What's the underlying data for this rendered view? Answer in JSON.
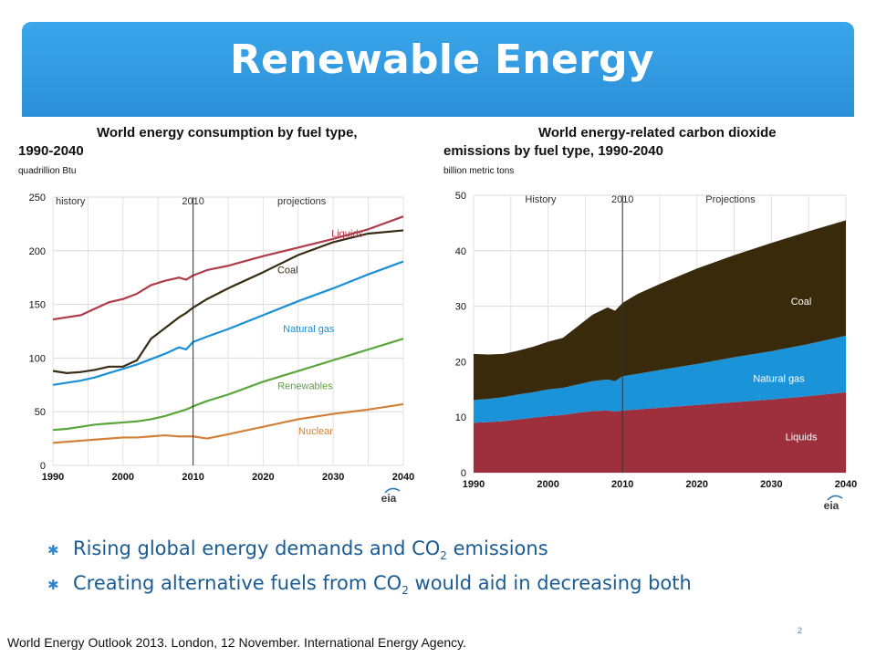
{
  "slide": {
    "title": "Renewable Energy",
    "bullets": [
      {
        "before": "Rising global energy demands and CO",
        "sub": "2",
        "after": " emissions"
      },
      {
        "before": "Creating alternative fuels from CO",
        "sub": "2",
        "after": " would aid in decreasing both"
      }
    ],
    "bullet_icon": "asterisk-bullet-icon",
    "footer": "World Energy Outlook 2013. London, 12 November. International Energy Agency.",
    "page_number": "2",
    "colors": {
      "banner": "#2f9ae3",
      "bullet_text": "#1a5b94"
    }
  },
  "chart_data": [
    {
      "type": "line",
      "title": "World energy consumption by fuel type,",
      "subtitle": "1990-2040",
      "ylabel": "quadrillion Btu",
      "xlabel": "",
      "xlim": [
        1990,
        2040
      ],
      "ylim": [
        0,
        250
      ],
      "xticks": [
        1990,
        2000,
        2010,
        2020,
        2030,
        2040
      ],
      "yticks": [
        0,
        50,
        100,
        150,
        200,
        250
      ],
      "grid": true,
      "divider": {
        "x": 2010,
        "label": "2010"
      },
      "region_labels": {
        "left": "history",
        "right": "projections"
      },
      "logo": "eia",
      "x": [
        1990,
        1992,
        1994,
        1996,
        1998,
        2000,
        2002,
        2004,
        2006,
        2008,
        2009,
        2010,
        2012,
        2015,
        2020,
        2025,
        2030,
        2035,
        2040
      ],
      "series": [
        {
          "name": "Liquids",
          "color": "#b03a48",
          "values": [
            136,
            138,
            140,
            146,
            152,
            155,
            160,
            168,
            172,
            175,
            173,
            177,
            182,
            186,
            195,
            203,
            211,
            220,
            232
          ]
        },
        {
          "name": "Coal",
          "color": "#3b2a14",
          "values": [
            88,
            86,
            87,
            89,
            92,
            92,
            98,
            118,
            128,
            138,
            142,
            147,
            155,
            165,
            180,
            196,
            208,
            216,
            219
          ]
        },
        {
          "name": "Natural gas",
          "color": "#1b8fd6",
          "values": [
            75,
            77,
            79,
            82,
            86,
            90,
            94,
            99,
            104,
            110,
            108,
            115,
            120,
            127,
            140,
            153,
            165,
            178,
            190
          ]
        },
        {
          "name": "Renewables",
          "color": "#5aa63c",
          "values": [
            33,
            34,
            36,
            38,
            39,
            40,
            41,
            43,
            46,
            50,
            52,
            55,
            60,
            66,
            78,
            88,
            98,
            108,
            118
          ]
        },
        {
          "name": "Nuclear",
          "color": "#d2813a",
          "values": [
            21,
            22,
            23,
            24,
            25,
            26,
            26,
            27,
            28,
            27,
            27,
            27,
            25,
            29,
            36,
            43,
            48,
            52,
            57
          ]
        }
      ]
    },
    {
      "type": "area",
      "stacked": true,
      "title": "World energy-related carbon dioxide",
      "subtitle": "emissions by fuel type, 1990-2040",
      "ylabel": "billion  metric tons",
      "xlabel": "",
      "xlim": [
        1990,
        2040
      ],
      "ylim": [
        0,
        50
      ],
      "xticks": [
        1990,
        2000,
        2010,
        2020,
        2030,
        2040
      ],
      "yticks": [
        0,
        10,
        20,
        30,
        40,
        50
      ],
      "grid": true,
      "divider": {
        "x": 2010,
        "label": "2010"
      },
      "region_labels": {
        "left": "History",
        "right": "Projections"
      },
      "logo": "eia",
      "x": [
        1990,
        1992,
        1994,
        1996,
        1998,
        2000,
        2002,
        2004,
        2006,
        2008,
        2009,
        2010,
        2012,
        2015,
        2020,
        2025,
        2030,
        2035,
        2040
      ],
      "series": [
        {
          "name": "Liquids",
          "color": "#9e2f3d",
          "values": [
            9.0,
            9.1,
            9.3,
            9.6,
            9.9,
            10.2,
            10.4,
            10.8,
            11.1,
            11.2,
            11.0,
            11.2,
            11.4,
            11.7,
            12.2,
            12.7,
            13.2,
            13.8,
            14.5
          ]
        },
        {
          "name": "Natural gas",
          "color": "#1a93d8",
          "values": [
            4.1,
            4.2,
            4.3,
            4.5,
            4.6,
            4.8,
            4.9,
            5.1,
            5.4,
            5.6,
            5.5,
            6.2,
            6.4,
            6.8,
            7.4,
            8.1,
            8.7,
            9.4,
            10.2
          ]
        },
        {
          "name": "Coal",
          "color": "#3a2a0c",
          "values": [
            8.3,
            8.0,
            7.8,
            7.9,
            8.2,
            8.6,
            9.0,
            10.5,
            12.0,
            13.0,
            12.7,
            13.2,
            14.4,
            15.5,
            17.2,
            18.4,
            19.5,
            20.3,
            20.8
          ]
        }
      ]
    }
  ]
}
